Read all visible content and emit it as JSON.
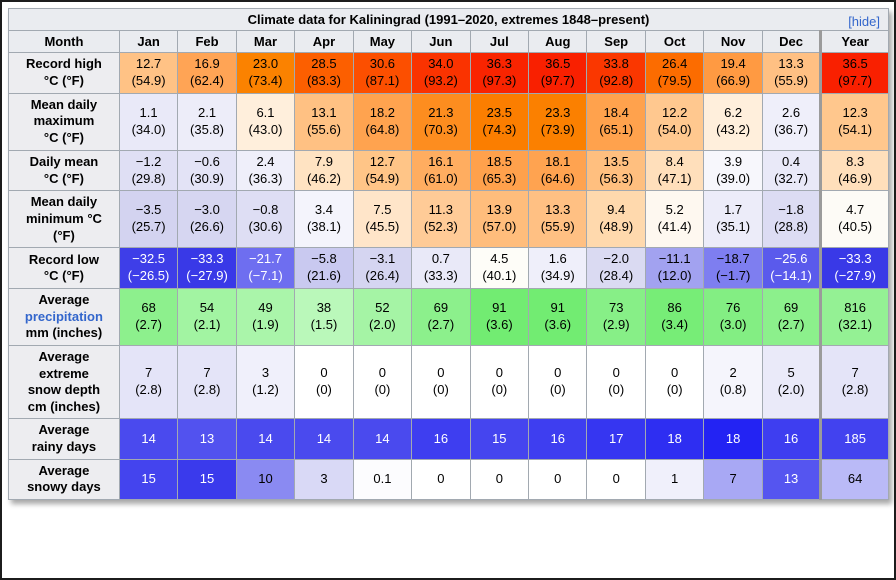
{
  "title_bar": {
    "title": "Climate data for Kaliningrad (1991–2020, extremes 1848–present)",
    "hide_label": "[hide]"
  },
  "colors": {
    "link": "#3366cc",
    "header_bg": "#eaecf0",
    "row_label_bg": "#ededf0",
    "year_separator": "#9b9b9b"
  },
  "table": {
    "columns": [
      "Month",
      "Jan",
      "Feb",
      "Mar",
      "Apr",
      "May",
      "Jun",
      "Jul",
      "Aug",
      "Sep",
      "Oct",
      "Nov",
      "Dec",
      "Year"
    ],
    "rows": [
      {
        "label": "Record high\n°C (°F)",
        "cells": [
          {
            "v": "12.7",
            "s": "(54.9)",
            "bg": "#FFC285"
          },
          {
            "v": "16.9",
            "s": "(62.4)",
            "bg": "#FFA455"
          },
          {
            "v": "23.0",
            "s": "(73.4)",
            "bg": "#FB8200"
          },
          {
            "v": "28.5",
            "s": "(83.3)",
            "bg": "#FC5F00"
          },
          {
            "v": "30.6",
            "s": "(87.1)",
            "bg": "#FC4F00"
          },
          {
            "v": "34.0",
            "s": "(93.2)",
            "bg": "#FA3300"
          },
          {
            "v": "36.3",
            "s": "(97.3)",
            "bg": "#F92400"
          },
          {
            "v": "36.5",
            "s": "(97.7)",
            "bg": "#F92000"
          },
          {
            "v": "33.8",
            "s": "(92.8)",
            "bg": "#FA3700"
          },
          {
            "v": "26.4",
            "s": "(79.5)",
            "bg": "#FC6C00"
          },
          {
            "v": "19.4",
            "s": "(66.9)",
            "bg": "#FF9A42"
          },
          {
            "v": "13.3",
            "s": "(55.9)",
            "bg": "#FFC083"
          },
          {
            "v": "36.5",
            "s": "(97.7)",
            "bg": "#F92000"
          }
        ]
      },
      {
        "label": "Mean daily\nmaximum\n°C (°F)",
        "cells": [
          {
            "v": "1.1",
            "s": "(34.0)",
            "bg": "#E9E9F8"
          },
          {
            "v": "2.1",
            "s": "(35.8)",
            "bg": "#EDEDF9"
          },
          {
            "v": "6.1",
            "s": "(43.0)",
            "bg": "#FFEFDC"
          },
          {
            "v": "13.1",
            "s": "(55.6)",
            "bg": "#FFC183"
          },
          {
            "v": "18.2",
            "s": "(64.8)",
            "bg": "#FFA34F"
          },
          {
            "v": "21.3",
            "s": "(70.3)",
            "bg": "#FD8D1F"
          },
          {
            "v": "23.5",
            "s": "(74.3)",
            "bg": "#FB7E00"
          },
          {
            "v": "23.3",
            "s": "(73.9)",
            "bg": "#FB8000"
          },
          {
            "v": "18.4",
            "s": "(65.1)",
            "bg": "#FFA24D"
          },
          {
            "v": "12.2",
            "s": "(54.0)",
            "bg": "#FFC88F"
          },
          {
            "v": "6.2",
            "s": "(43.2)",
            "bg": "#FFEFDC"
          },
          {
            "v": "2.6",
            "s": "(36.7)",
            "bg": "#EFEFFA"
          },
          {
            "v": "12.3",
            "s": "(54.1)",
            "bg": "#FFC78D"
          }
        ]
      },
      {
        "label": "Daily mean\n°C (°F)",
        "cells": [
          {
            "v": "−1.2",
            "s": "(29.8)",
            "bg": "#DFDFF4"
          },
          {
            "v": "−0.6",
            "s": "(30.9)",
            "bg": "#E3E3F6"
          },
          {
            "v": "2.4",
            "s": "(36.3)",
            "bg": "#EFEFFA"
          },
          {
            "v": "7.9",
            "s": "(46.2)",
            "bg": "#FFE3C2"
          },
          {
            "v": "12.7",
            "s": "(54.9)",
            "bg": "#FFC587"
          },
          {
            "v": "16.1",
            "s": "(61.0)",
            "bg": "#FFAD60"
          },
          {
            "v": "18.5",
            "s": "(65.3)",
            "bg": "#FFA14C"
          },
          {
            "v": "18.1",
            "s": "(64.6)",
            "bg": "#FFA350"
          },
          {
            "v": "13.5",
            "s": "(56.3)",
            "bg": "#FFBF7F"
          },
          {
            "v": "8.4",
            "s": "(47.1)",
            "bg": "#FFDFBB"
          },
          {
            "v": "3.9",
            "s": "(39.0)",
            "bg": "#F7F7FC"
          },
          {
            "v": "0.4",
            "s": "(32.7)",
            "bg": "#E9E9F8"
          },
          {
            "v": "8.3",
            "s": "(46.9)",
            "bg": "#FFDFBB"
          }
        ]
      },
      {
        "label": "Mean daily\nminimum °C\n(°F)",
        "cells": [
          {
            "v": "−3.5",
            "s": "(25.7)",
            "bg": "#D3D3F0"
          },
          {
            "v": "−3.0",
            "s": "(26.6)",
            "bg": "#D6D6F1"
          },
          {
            "v": "−0.8",
            "s": "(30.6)",
            "bg": "#DEDEF4"
          },
          {
            "v": "3.4",
            "s": "(38.1)",
            "bg": "#F4F4FC"
          },
          {
            "v": "7.5",
            "s": "(45.5)",
            "bg": "#FFE5C9"
          },
          {
            "v": "11.3",
            "s": "(52.3)",
            "bg": "#FFCB97"
          },
          {
            "v": "13.9",
            "s": "(57.0)",
            "bg": "#FFBD7C"
          },
          {
            "v": "13.3",
            "s": "(55.9)",
            "bg": "#FFC083"
          },
          {
            "v": "9.4",
            "s": "(48.9)",
            "bg": "#FFD9AD"
          },
          {
            "v": "5.2",
            "s": "(41.4)",
            "bg": "#FEF8F0"
          },
          {
            "v": "1.7",
            "s": "(35.1)",
            "bg": "#ECECF9"
          },
          {
            "v": "−1.8",
            "s": "(28.8)",
            "bg": "#DCDCF3"
          },
          {
            "v": "4.7",
            "s": "(40.5)",
            "bg": "#FDFBF6"
          }
        ]
      },
      {
        "label": "Record low\n°C (°F)",
        "cells": [
          {
            "v": "−32.5",
            "s": "(−26.5)",
            "bg": "#3E3EE8",
            "fg": "#fff"
          },
          {
            "v": "−33.3",
            "s": "(−27.9)",
            "bg": "#3939E7",
            "fg": "#fff"
          },
          {
            "v": "−21.7",
            "s": "(−7.1)",
            "bg": "#6E6EF0",
            "fg": "#fff"
          },
          {
            "v": "−5.8",
            "s": "(21.6)",
            "bg": "#C9C9F0"
          },
          {
            "v": "−3.1",
            "s": "(26.4)",
            "bg": "#D5D5F1"
          },
          {
            "v": "0.7",
            "s": "(33.3)",
            "bg": "#E9E9F8"
          },
          {
            "v": "4.5",
            "s": "(40.1)",
            "bg": "#FEFDF8"
          },
          {
            "v": "1.6",
            "s": "(34.9)",
            "bg": "#EFEFFA"
          },
          {
            "v": "−2.0",
            "s": "(28.4)",
            "bg": "#DADAF2"
          },
          {
            "v": "−11.1",
            "s": "(12.0)",
            "bg": "#A2A2F0"
          },
          {
            "v": "−18.7",
            "s": "(−1.7)",
            "bg": "#7E7EF0"
          },
          {
            "v": "−25.6",
            "s": "(−14.1)",
            "bg": "#5A5AEC",
            "fg": "#fff"
          },
          {
            "v": "−33.3",
            "s": "(−27.9)",
            "bg": "#3939E7",
            "fg": "#fff"
          }
        ]
      },
      {
        "label_pre": "Average\n",
        "link": "precipitation",
        "label_post": "\nmm (inches)",
        "cells": [
          {
            "v": "68",
            "s": "(2.7)",
            "bg": "#8DF08D"
          },
          {
            "v": "54",
            "s": "(2.1)",
            "bg": "#A2F4A2"
          },
          {
            "v": "49",
            "s": "(1.9)",
            "bg": "#AAF5AA"
          },
          {
            "v": "38",
            "s": "(1.5)",
            "bg": "#BAF8BA"
          },
          {
            "v": "52",
            "s": "(2.0)",
            "bg": "#A5F4A5"
          },
          {
            "v": "69",
            "s": "(2.7)",
            "bg": "#8CF08C"
          },
          {
            "v": "91",
            "s": "(3.6)",
            "bg": "#72EC72"
          },
          {
            "v": "91",
            "s": "(3.6)",
            "bg": "#72EC72"
          },
          {
            "v": "73",
            "s": "(2.9)",
            "bg": "#87EF87"
          },
          {
            "v": "86",
            "s": "(3.4)",
            "bg": "#77ED77"
          },
          {
            "v": "76",
            "s": "(3.0)",
            "bg": "#83EE83"
          },
          {
            "v": "69",
            "s": "(2.7)",
            "bg": "#8CF08C"
          },
          {
            "v": "816",
            "s": "(32.1)",
            "bg": "#94F194"
          }
        ]
      },
      {
        "label": "Average\nextreme\nsnow depth\ncm (inches)",
        "cells": [
          {
            "v": "7",
            "s": "(2.8)",
            "bg": "#E4E4F8"
          },
          {
            "v": "7",
            "s": "(2.8)",
            "bg": "#E4E4F8"
          },
          {
            "v": "3",
            "s": "(1.2)",
            "bg": "#F0F0FB"
          },
          {
            "v": "0",
            "s": "(0)",
            "bg": "#FFFFFF"
          },
          {
            "v": "0",
            "s": "(0)",
            "bg": "#FFFFFF"
          },
          {
            "v": "0",
            "s": "(0)",
            "bg": "#FFFFFF"
          },
          {
            "v": "0",
            "s": "(0)",
            "bg": "#FFFFFF"
          },
          {
            "v": "0",
            "s": "(0)",
            "bg": "#FFFFFF"
          },
          {
            "v": "0",
            "s": "(0)",
            "bg": "#FFFFFF"
          },
          {
            "v": "0",
            "s": "(0)",
            "bg": "#FFFFFF"
          },
          {
            "v": "2",
            "s": "(0.8)",
            "bg": "#F5F5FC"
          },
          {
            "v": "5",
            "s": "(2.0)",
            "bg": "#EAEAF9"
          },
          {
            "v": "7",
            "s": "(2.8)",
            "bg": "#E4E4F8"
          }
        ]
      },
      {
        "label": "Average\nrainy days",
        "cells": [
          {
            "v": "14",
            "bg": "#4A4AEE",
            "fg": "#fff"
          },
          {
            "v": "13",
            "bg": "#5252EF",
            "fg": "#fff"
          },
          {
            "v": "14",
            "bg": "#4A4AEE",
            "fg": "#fff"
          },
          {
            "v": "14",
            "bg": "#4A4AEE",
            "fg": "#fff"
          },
          {
            "v": "14",
            "bg": "#4A4AEE",
            "fg": "#fff"
          },
          {
            "v": "16",
            "bg": "#3E3EF0",
            "fg": "#fff"
          },
          {
            "v": "15",
            "bg": "#4545EF",
            "fg": "#fff"
          },
          {
            "v": "16",
            "bg": "#3E3EF0",
            "fg": "#fff"
          },
          {
            "v": "17",
            "bg": "#3636F1",
            "fg": "#fff"
          },
          {
            "v": "18",
            "bg": "#2E2EF2",
            "fg": "#fff"
          },
          {
            "v": "18",
            "bg": "#2323F3",
            "fg": "#fff"
          },
          {
            "v": "16",
            "bg": "#3E3EF0",
            "fg": "#fff"
          },
          {
            "v": "185",
            "bg": "#4242EF",
            "fg": "#fff"
          }
        ]
      },
      {
        "label": "Average\nsnowy days",
        "cells": [
          {
            "v": "15",
            "bg": "#4444EE",
            "fg": "#fff"
          },
          {
            "v": "15",
            "bg": "#3A3AEC",
            "fg": "#fff"
          },
          {
            "v": "10",
            "bg": "#8A8AF2"
          },
          {
            "v": "3",
            "bg": "#D9D9F6"
          },
          {
            "v": "0.1",
            "bg": "#FCFCFE"
          },
          {
            "v": "0",
            "bg": "#FFFFFF"
          },
          {
            "v": "0",
            "bg": "#FFFFFF"
          },
          {
            "v": "0",
            "bg": "#FFFFFF"
          },
          {
            "v": "0",
            "bg": "#FFFFFF"
          },
          {
            "v": "1",
            "bg": "#F0F0FB"
          },
          {
            "v": "7",
            "bg": "#A8A8F4"
          },
          {
            "v": "13",
            "bg": "#5555F0",
            "fg": "#fff"
          },
          {
            "v": "64",
            "bg": "#BABAF7"
          }
        ]
      }
    ]
  }
}
